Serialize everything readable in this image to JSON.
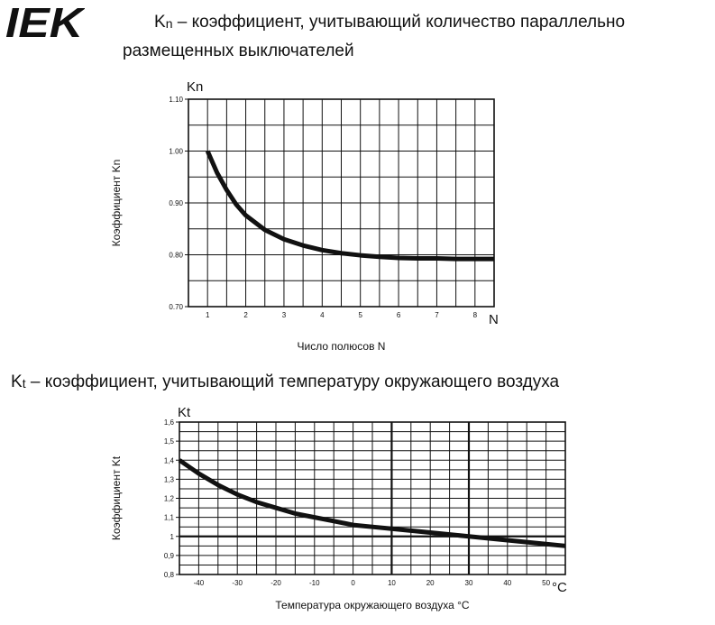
{
  "logo": {
    "text": "IEK",
    "color": "#111111"
  },
  "headings": {
    "kn_symbol": "K",
    "kn_sub": "n",
    "kn_line1": " – коэффициент, учитывающий количество параллельно",
    "kn_line2": "размещенных выключателей",
    "kt_symbol": "K",
    "kt_sub": "t",
    "kt_line": " – коэффициент, учитывающий температуру окружающего воздуха"
  },
  "chart_data": [
    {
      "type": "line",
      "title": "",
      "y_corner_label": "Kn",
      "x_corner_label": "N",
      "xlabel": "Число полюсов N",
      "ylabel": "Коэффициент Kn",
      "xlim": [
        0.5,
        8.5
      ],
      "ylim": [
        0.7,
        1.1
      ],
      "x_ticks": [
        1,
        2,
        3,
        4,
        5,
        6,
        7,
        8
      ],
      "x_tick_labels": [
        "1",
        "2",
        "3",
        "4",
        "5",
        "6",
        "7",
        "8"
      ],
      "y_ticks": [
        0.7,
        0.8,
        0.9,
        1.0,
        1.1
      ],
      "y_tick_labels": [
        "0.70",
        "0.80",
        "0.90",
        "1.00",
        "1.10"
      ],
      "grid": true,
      "line_color": "#111111",
      "series": [
        {
          "x": [
            1,
            1.25,
            1.5,
            1.75,
            2,
            2.5,
            3,
            3.5,
            4,
            4.5,
            5,
            5.5,
            6,
            6.5,
            7,
            7.5,
            8,
            8.5
          ],
          "values": [
            1.0,
            0.958,
            0.925,
            0.897,
            0.876,
            0.848,
            0.83,
            0.818,
            0.809,
            0.803,
            0.799,
            0.796,
            0.794,
            0.793,
            0.793,
            0.792,
            0.792,
            0.792
          ]
        }
      ]
    },
    {
      "type": "line",
      "title": "",
      "y_corner_label": "Kt",
      "x_corner_label": "°C",
      "xlabel": "Температура окружающего воздуха °С",
      "ylabel": "Коэффициент Kt",
      "xlim": [
        -45,
        55
      ],
      "ylim": [
        0.8,
        1.6
      ],
      "x_ticks": [
        -40,
        -30,
        -20,
        -10,
        0,
        10,
        20,
        30,
        40,
        50
      ],
      "x_tick_labels": [
        "-40",
        "-30",
        "-20",
        "-10",
        "0",
        "10",
        "20",
        "30",
        "40",
        "50"
      ],
      "y_ticks": [
        0.8,
        0.9,
        1.0,
        1.1,
        1.2,
        1.3,
        1.4,
        1.5,
        1.6
      ],
      "y_tick_labels": [
        "0,8",
        "0,9",
        "1",
        "1,1",
        "1,2",
        "1,3",
        "1,4",
        "1,5",
        "1,6"
      ],
      "emphasized_x": [
        10,
        30
      ],
      "emphasized_y": [
        1.0
      ],
      "grid": true,
      "line_color": "#111111",
      "series": [
        {
          "x": [
            -45,
            -40,
            -35,
            -30,
            -25,
            -20,
            -15,
            -10,
            -5,
            0,
            5,
            10,
            15,
            20,
            25,
            30,
            35,
            40,
            45,
            50,
            55
          ],
          "values": [
            1.4,
            1.33,
            1.27,
            1.22,
            1.18,
            1.15,
            1.12,
            1.1,
            1.08,
            1.06,
            1.05,
            1.04,
            1.03,
            1.02,
            1.01,
            1.0,
            0.99,
            0.98,
            0.97,
            0.96,
            0.95
          ]
        }
      ]
    }
  ]
}
